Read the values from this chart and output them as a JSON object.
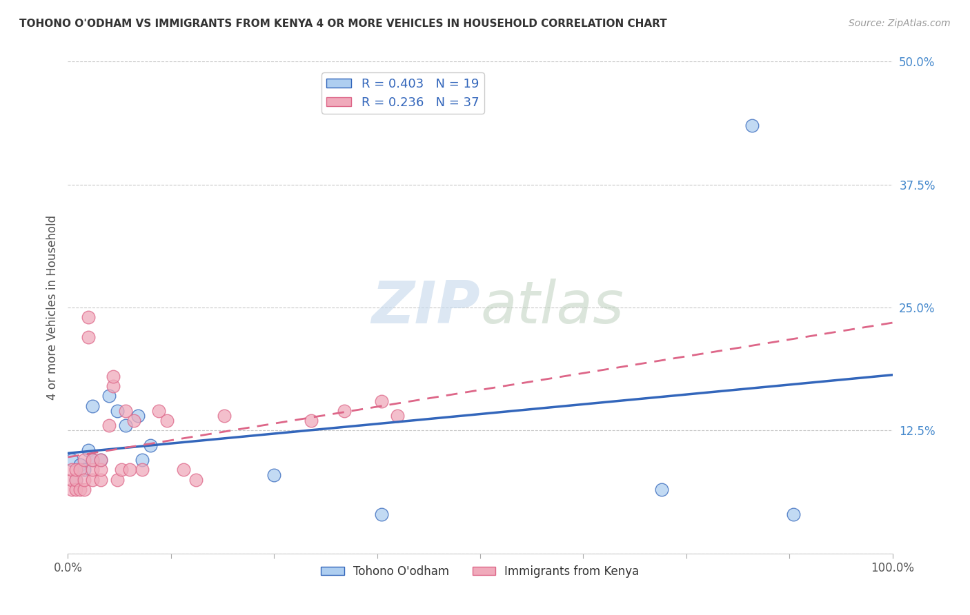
{
  "title": "TOHONO O'ODHAM VS IMMIGRANTS FROM KENYA 4 OR MORE VEHICLES IN HOUSEHOLD CORRELATION CHART",
  "source": "Source: ZipAtlas.com",
  "ylabel": "4 or more Vehicles in Household",
  "xlim": [
    0.0,
    1.0
  ],
  "ylim": [
    0.0,
    0.5
  ],
  "xticks": [
    0.0,
    0.125,
    0.25,
    0.375,
    0.5,
    0.625,
    0.75,
    0.875,
    1.0
  ],
  "xticklabels": [
    "0.0%",
    "",
    "",
    "",
    "",
    "",
    "",
    "",
    "100.0%"
  ],
  "yticks": [
    0.0,
    0.125,
    0.25,
    0.375,
    0.5
  ],
  "yticklabels": [
    "",
    "12.5%",
    "25.0%",
    "37.5%",
    "50.0%"
  ],
  "grid_color": "#c8c8c8",
  "background_color": "#ffffff",
  "legend_r1": "R = 0.403",
  "legend_n1": "N = 19",
  "legend_r2": "R = 0.236",
  "legend_n2": "N = 37",
  "color_blue": "#aecef0",
  "color_pink": "#f0aabb",
  "line_color_blue": "#3366bb",
  "line_color_pink": "#dd6688",
  "legend_label1": "Tohono O'odham",
  "legend_label2": "Immigrants from Kenya",
  "blue_x": [
    0.005,
    0.01,
    0.015,
    0.02,
    0.025,
    0.03,
    0.03,
    0.04,
    0.05,
    0.06,
    0.07,
    0.085,
    0.09,
    0.1,
    0.25,
    0.38,
    0.72,
    0.83,
    0.88
  ],
  "blue_y": [
    0.095,
    0.075,
    0.09,
    0.085,
    0.105,
    0.095,
    0.15,
    0.095,
    0.16,
    0.145,
    0.13,
    0.14,
    0.095,
    0.11,
    0.08,
    0.04,
    0.065,
    0.435,
    0.04
  ],
  "pink_x": [
    0.005,
    0.005,
    0.005,
    0.01,
    0.01,
    0.01,
    0.015,
    0.015,
    0.02,
    0.02,
    0.02,
    0.025,
    0.025,
    0.03,
    0.03,
    0.03,
    0.04,
    0.04,
    0.04,
    0.05,
    0.055,
    0.055,
    0.06,
    0.065,
    0.07,
    0.075,
    0.08,
    0.09,
    0.11,
    0.12,
    0.14,
    0.155,
    0.19,
    0.295,
    0.335,
    0.38,
    0.4
  ],
  "pink_y": [
    0.065,
    0.075,
    0.085,
    0.065,
    0.075,
    0.085,
    0.065,
    0.085,
    0.065,
    0.075,
    0.095,
    0.22,
    0.24,
    0.075,
    0.085,
    0.095,
    0.075,
    0.085,
    0.095,
    0.13,
    0.17,
    0.18,
    0.075,
    0.085,
    0.145,
    0.085,
    0.135,
    0.085,
    0.145,
    0.135,
    0.085,
    0.075,
    0.14,
    0.135,
    0.145,
    0.155,
    0.14
  ]
}
